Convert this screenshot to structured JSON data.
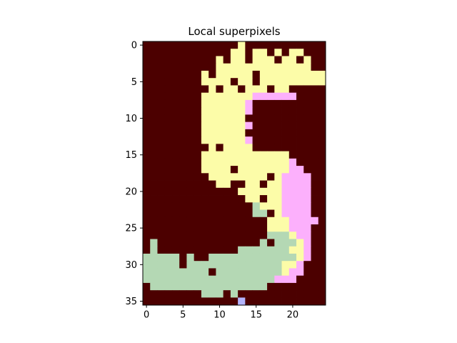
{
  "chart_data": {
    "type": "heatmap",
    "title": "Local superpixels",
    "xlabel": "",
    "ylabel": "",
    "x_ticks": [
      "0",
      "5",
      "10",
      "15",
      "20"
    ],
    "y_ticks": [
      "0",
      "5",
      "10",
      "15",
      "20",
      "25",
      "30",
      "35"
    ],
    "xlim": [
      -0.5,
      24.5
    ],
    "ylim": [
      35.5,
      -0.5
    ],
    "grid": false,
    "legend": "none",
    "colors": {
      "0": "#4c0000",
      "1": "#fcfca8",
      "2": "#fcb0fc",
      "3": "#b4d8b4",
      "4": "#b4b4fc"
    },
    "grid_rows": [
      "0000000000000100000000000",
      "0000000000001111111111100",
      "0000000000111101111111100",
      "0000000000111111111111100",
      "0000000011111111111111111",
      "0000000011111111111111111",
      "0000000011111111111110000",
      "0000000011111112222220000",
      "0000000011111120000000000",
      "0000000011111120000000000",
      "0000000011111100000000000",
      "0000000011111120000000000",
      "0000000011111100000000000",
      "0000000011111120000000000",
      "0000000011111110000000000",
      "0000000011111111111100000",
      "0000000011111111111120000",
      "0000000011111111111122000",
      "0000000001111111111222200",
      "0000000000111011111222200",
      "0000000000000111111222200",
      "0000000000000011111222200",
      "0000000000000003111222200",
      "0000000000000003311222200",
      "0000000000000000011122220",
      "0000000000000000011122200",
      "0000000000000000033312200",
      "0300000000000000333331200",
      "0300000000000333333311200",
      "3333303003333333333331200",
      "3333333333333333333112000",
      "3333333333333333333122000",
      "3333333333333333332220000",
      "0333333333333333300000000",
      "0000000033303000000000000",
      "0000000000000400000000000"
    ],
    "dark_cells": [
      [
        0,
        12
      ],
      [
        0,
        16
      ],
      [
        0,
        20
      ],
      [
        1,
        14
      ],
      [
        1,
        17
      ],
      [
        1,
        19
      ],
      [
        1,
        22
      ],
      [
        2,
        11
      ],
      [
        2,
        18
      ],
      [
        2,
        21
      ],
      [
        4,
        9
      ],
      [
        4,
        15
      ],
      [
        5,
        12
      ],
      [
        5,
        15
      ],
      [
        6,
        8
      ],
      [
        6,
        10
      ],
      [
        6,
        13
      ],
      [
        6,
        17
      ],
      [
        6,
        20
      ],
      [
        7,
        6
      ],
      [
        12,
        7
      ],
      [
        14,
        8
      ],
      [
        14,
        10
      ],
      [
        16,
        6
      ],
      [
        17,
        12
      ],
      [
        18,
        17
      ],
      [
        19,
        12
      ],
      [
        19,
        16
      ],
      [
        21,
        16
      ],
      [
        23,
        17
      ],
      [
        27,
        17
      ],
      [
        28,
        12
      ],
      [
        30,
        5
      ],
      [
        31,
        9
      ]
    ]
  }
}
